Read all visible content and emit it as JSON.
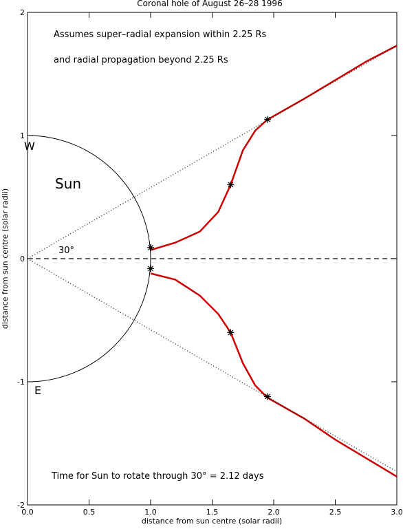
{
  "chart_data": {
    "type": "line",
    "title": "Coronal hole of August 26–28 1996",
    "xlabel": "distance from sun centre (solar radii)",
    "ylabel": "distance from sun centre (solar radii)",
    "xlim": [
      0,
      3
    ],
    "ylim": [
      -2,
      2
    ],
    "xticks": [
      {
        "value": 0,
        "label": "0.0"
      },
      {
        "value": 0.5,
        "label": "0.5"
      },
      {
        "value": 1,
        "label": "1.0"
      },
      {
        "value": 1.5,
        "label": "1.5"
      },
      {
        "value": 2,
        "label": "2.0"
      },
      {
        "value": 2.5,
        "label": "2.5"
      },
      {
        "value": 3,
        "label": "3.0"
      }
    ],
    "yticks": [
      -2,
      -1,
      0,
      1,
      2
    ],
    "annotations": [
      "Assumes super–radial expansion within 2.25 Rs",
      "and radial propagation beyond 2.25 Rs",
      "W",
      "Sun",
      "30°",
      "E",
      "Time for Sun to rotate through 30° = 2.12 days"
    ],
    "series": [
      {
        "color": "#cc0000",
        "style": "solid",
        "x": [
          1.0,
          1.2,
          1.4,
          1.55,
          1.65,
          1.75,
          1.85,
          1.95,
          2.25,
          2.5,
          2.75,
          3.0
        ],
        "values": [
          0.07,
          0.13,
          0.22,
          0.38,
          0.6,
          0.88,
          1.04,
          1.13,
          1.3,
          1.45,
          1.6,
          1.73
        ]
      },
      {
        "color": "#cc0000",
        "style": "solid",
        "x": [
          1.0,
          1.2,
          1.4,
          1.55,
          1.65,
          1.75,
          1.85,
          1.95,
          2.25,
          2.5,
          2.75,
          3.0
        ],
        "values": [
          -0.12,
          -0.17,
          -0.3,
          -0.45,
          -0.6,
          -0.85,
          -1.03,
          -1.13,
          -1.3,
          -1.47,
          -1.62,
          -1.77
        ]
      },
      {
        "color": "#000000",
        "style": "dotted",
        "x": [
          0,
          3
        ],
        "values": [
          0,
          1.73
        ]
      },
      {
        "color": "#000000",
        "style": "dotted",
        "x": [
          0,
          3
        ],
        "values": [
          0,
          -1.73
        ]
      },
      {
        "color": "#000000",
        "style": "dashed",
        "x": [
          0,
          3
        ],
        "values": [
          0,
          0
        ]
      },
      {
        "color": "#000000",
        "style": "none",
        "marker": "asterisk",
        "x": [
          1.0,
          1.65,
          1.95,
          1.0,
          1.65,
          1.95
        ],
        "values": [
          0.09,
          0.6,
          1.13,
          -0.08,
          -0.6,
          -1.12
        ]
      }
    ]
  }
}
